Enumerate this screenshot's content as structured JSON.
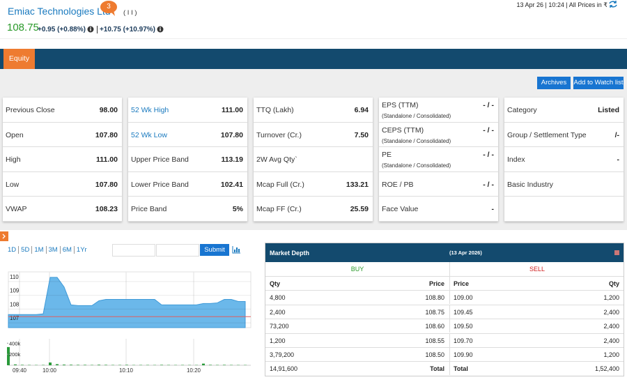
{
  "header": {
    "company": "Emiac Technologies Ltd",
    "badge": "3",
    "code": "( I I )",
    "timestamp": "13 Apr 26 | 10:24 | All Prices in ₹",
    "price": "108.75",
    "change": "+0.95 (+0.88%)",
    "change_2": "+10.75 (+10.97%)"
  },
  "tabs": [
    "Equity"
  ],
  "buttons": [
    "Archives",
    "Add to Watch list"
  ],
  "cards": [
    [
      {
        "label": "Previous Close",
        "value": "98.00"
      },
      {
        "label": "Open",
        "value": "107.80"
      },
      {
        "label": "High",
        "value": "111.00"
      },
      {
        "label": "Low",
        "value": "107.80"
      },
      {
        "label": "VWAP",
        "value": "108.23"
      }
    ],
    [
      {
        "label": "52 Wk High",
        "value": "111.00",
        "link": true
      },
      {
        "label": "52 Wk Low",
        "value": "107.80",
        "link": true
      },
      {
        "label": "Upper Price Band",
        "value": "113.19"
      },
      {
        "label": "Lower Price Band",
        "value": "102.41"
      },
      {
        "label": "Price Band",
        "value": "5%"
      }
    ],
    [
      {
        "label": "TTQ (Lakh)",
        "value": "6.94"
      },
      {
        "label": "Turnover (Cr.)",
        "value": "7.50"
      },
      {
        "label": "2W Avg Qty`"
      },
      {
        "label": "Mcap Full (Cr.)",
        "value": "133.21"
      },
      {
        "label": "Mcap FF (Cr.)",
        "value": "25.59"
      }
    ],
    [
      {
        "label": "EPS (TTM)",
        "sub": "(Standalone / Consolidated)",
        "value": "- / -",
        "info": true
      },
      {
        "label": "CEPS (TTM)",
        "sub": "(Standalone / Consolidated)",
        "value": "- / -"
      },
      {
        "label": "PE",
        "sub": "(Standalone / Consolidated)",
        "value": "- / -"
      },
      {
        "label": "ROE / PB",
        "value": "- / -"
      },
      {
        "label": "Face Value",
        "value": "-"
      }
    ],
    [
      {
        "label": "Category",
        "value": "Listed"
      },
      {
        "label": "Group / Settlement Type",
        "value": "/-"
      },
      {
        "label": "Index",
        "value": "-"
      },
      {
        "label": "Basic Industry"
      }
    ]
  ],
  "chart_controls": {
    "periods": [
      "1D",
      "5D",
      "1M",
      "3M",
      "6M",
      "1Yr"
    ],
    "submit": "Submit"
  },
  "chart_data": [
    {
      "type": "area",
      "color": "#6bb8ea",
      "line_color": "#3f9ad8",
      "x": [
        0,
        1,
        2,
        3,
        4,
        5,
        6,
        7,
        8,
        9,
        10,
        11,
        12,
        13,
        14,
        15,
        16,
        17,
        18,
        19,
        20,
        21,
        22,
        23,
        24,
        25,
        26,
        27,
        28,
        29,
        30,
        31,
        32,
        33,
        34
      ],
      "values": [
        107.6,
        107.6,
        107.6,
        107.6,
        107.6,
        107.65,
        110.3,
        110.3,
        109.6,
        108.3,
        108.25,
        108.25,
        108.25,
        108.6,
        108.7,
        108.7,
        108.7,
        108.7,
        108.7,
        108.7,
        108.7,
        108.7,
        108.3,
        108.3,
        108.3,
        108.3,
        108.3,
        108.3,
        108.4,
        108.4,
        108.45,
        108.7,
        108.7,
        108.55,
        108.55
      ],
      "xlim": [
        0,
        34.8
      ],
      "ylim": [
        106.65,
        110.7
      ],
      "yticks": [
        110,
        109,
        108,
        107
      ],
      "reference_line": 107.45,
      "reference_color": "#e06060",
      "grid": true
    },
    {
      "type": "bar",
      "color": "#2a9a3a",
      "x": [
        0,
        1,
        2,
        3,
        4,
        5,
        6,
        7,
        8,
        9,
        10,
        11,
        12,
        13,
        14,
        15,
        16,
        17,
        18,
        19,
        20,
        21,
        22,
        23,
        24,
        25,
        26,
        27,
        28,
        29,
        30,
        31,
        32,
        33,
        34
      ],
      "values": [
        330000,
        15000,
        8000,
        6000,
        5000,
        6000,
        50000,
        20000,
        12000,
        10000,
        8000,
        8000,
        6000,
        10000,
        8000,
        6000,
        6000,
        8000,
        5000,
        6000,
        6000,
        5000,
        8000,
        6000,
        5000,
        6000,
        5000,
        5000,
        30000,
        8000,
        6000,
        8000,
        6000,
        5000,
        5000
      ],
      "xlim": [
        0,
        34.8
      ],
      "ylim": [
        0,
        480000
      ],
      "yticks": [
        {
          "value": 400000,
          "label": "400k"
        },
        {
          "value": 200000,
          "label": "200k"
        }
      ],
      "xticks": [
        {
          "value": 1.6,
          "label": "09:40"
        },
        {
          "value": 5.9,
          "label": "10:00"
        },
        {
          "value": 16.9,
          "label": "10:10"
        },
        {
          "value": 26.6,
          "label": "10:20"
        }
      ]
    }
  ],
  "market_depth": {
    "title": "Market Depth",
    "date": "(13 Apr 2026)",
    "buy": "BUY",
    "sell": "SELL",
    "columns": [
      "Qty",
      "Price",
      "Price",
      "Qty"
    ],
    "rows": [
      [
        "4,800",
        "108.80",
        "109.00",
        "1,200"
      ],
      [
        "2,400",
        "108.75",
        "109.45",
        "2,400"
      ],
      [
        "73,200",
        "108.60",
        "109.50",
        "2,400"
      ],
      [
        "1,200",
        "108.55",
        "109.70",
        "2,400"
      ],
      [
        "3,79,200",
        "108.50",
        "109.90",
        "1,200"
      ]
    ],
    "total": [
      "14,91,600",
      "Total",
      "Total",
      "1,52,400"
    ]
  }
}
